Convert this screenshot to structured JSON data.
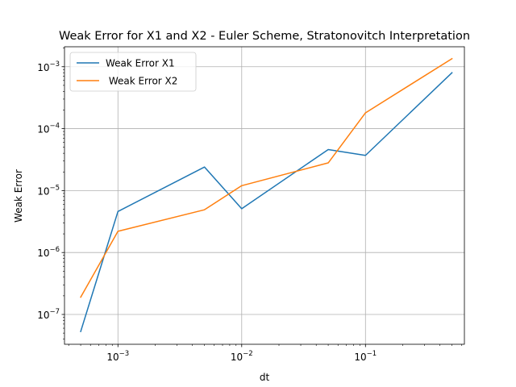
{
  "chart_data": {
    "type": "line",
    "title": "Weak Error for X1 and X2 - Euler Scheme, Stratonovitch Interpretation",
    "xlabel": "dt",
    "ylabel": "Weak Error",
    "xscale": "log",
    "yscale": "log",
    "xlim": [
      0.00037,
      0.63
    ],
    "ylim": [
      3.3e-08,
      0.0021
    ],
    "grid": true,
    "legend_position": "upper-left",
    "x": [
      0.0005,
      0.001,
      0.005,
      0.01,
      0.05,
      0.1,
      0.5
    ],
    "series": [
      {
        "name": "Weak Error X1",
        "color": "#1f77b4",
        "values": [
          5.3e-08,
          4.6e-06,
          2.4e-05,
          5.1e-06,
          4.6e-05,
          3.7e-05,
          0.0008
        ]
      },
      {
        "name": " Weak Error X2",
        "color": "#ff7f0e",
        "values": [
          1.9e-07,
          2.2e-06,
          4.9e-06,
          1.2e-05,
          2.8e-05,
          0.00018,
          0.00135
        ]
      }
    ],
    "x_ticks": [
      {
        "value": 0.001,
        "base": "10",
        "exp": "−3"
      },
      {
        "value": 0.01,
        "base": "10",
        "exp": "−2"
      },
      {
        "value": 0.1,
        "base": "10",
        "exp": "−1"
      }
    ],
    "y_ticks": [
      {
        "value": 1e-07,
        "base": "10",
        "exp": "−7"
      },
      {
        "value": 1e-06,
        "base": "10",
        "exp": "−6"
      },
      {
        "value": 1e-05,
        "base": "10",
        "exp": "−5"
      },
      {
        "value": 0.0001,
        "base": "10",
        "exp": "−4"
      },
      {
        "value": 0.001,
        "base": "10",
        "exp": "−3"
      }
    ]
  }
}
